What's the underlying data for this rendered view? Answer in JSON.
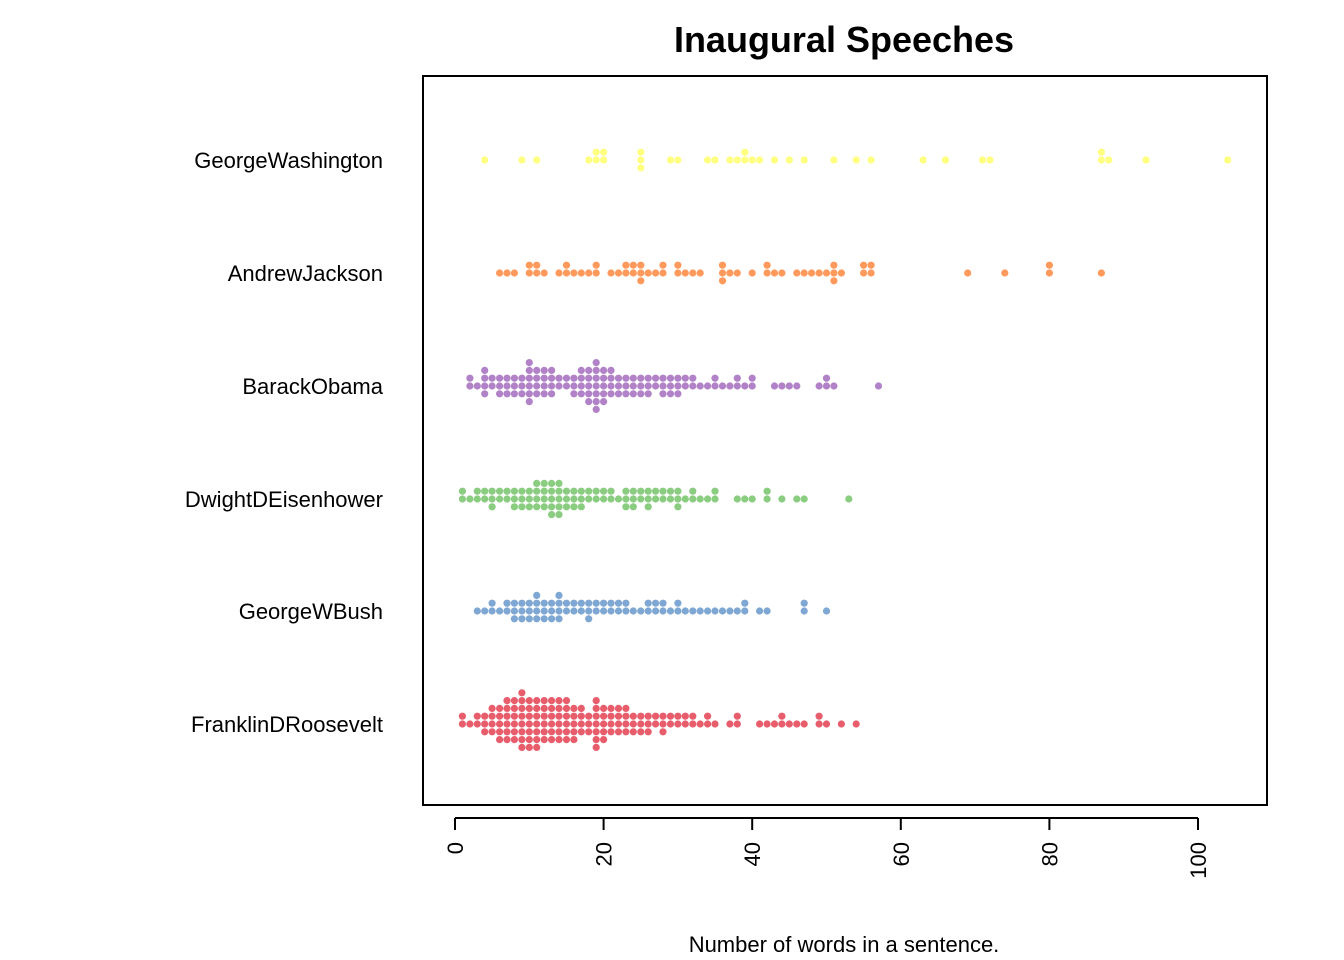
{
  "chart_data": {
    "type": "beeswarm",
    "title": "Inaugural Speeches",
    "xlabel": "Number of words in a sentence.",
    "ylabel": "",
    "xlim": [
      0,
      104
    ],
    "x_ticks": [
      0,
      20,
      40,
      60,
      80,
      100
    ],
    "x_tick_labels": [
      "0",
      "20",
      "40",
      "60",
      "80",
      "100"
    ],
    "x_tick_label_orientation": "vertical",
    "grid": false,
    "legend": "none",
    "series": [
      {
        "name": "GeorgeWashington",
        "color": "#FFFF80",
        "values": [
          4,
          9,
          11,
          18,
          19,
          19,
          20,
          20,
          25,
          25,
          25,
          29,
          30,
          34,
          35,
          37,
          38,
          39,
          39,
          40,
          41,
          43,
          45,
          47,
          51,
          54,
          56,
          63,
          66,
          71,
          72,
          87,
          87,
          88,
          93,
          104
        ]
      },
      {
        "name": "AndrewJackson",
        "color": "#FF9A5C",
        "values": [
          6,
          7,
          8,
          10,
          10,
          11,
          11,
          12,
          14,
          15,
          15,
          16,
          17,
          18,
          19,
          19,
          21,
          22,
          23,
          23,
          24,
          24,
          25,
          25,
          25,
          26,
          27,
          28,
          28,
          30,
          30,
          31,
          32,
          33,
          36,
          36,
          36,
          37,
          38,
          40,
          42,
          42,
          43,
          44,
          46,
          47,
          48,
          49,
          50,
          51,
          51,
          51,
          52,
          55,
          55,
          56,
          56,
          69,
          74,
          80,
          80,
          87
        ]
      },
      {
        "name": "BarackObama",
        "color": "#B182C7",
        "values": [
          2,
          2,
          3,
          4,
          4,
          4,
          4,
          5,
          5,
          6,
          6,
          6,
          7,
          7,
          7,
          8,
          8,
          8,
          9,
          9,
          9,
          10,
          10,
          10,
          10,
          10,
          10,
          11,
          11,
          11,
          11,
          12,
          12,
          12,
          12,
          13,
          13,
          13,
          13,
          14,
          14,
          15,
          15,
          16,
          16,
          16,
          17,
          17,
          17,
          17,
          18,
          18,
          18,
          18,
          18,
          19,
          19,
          19,
          19,
          19,
          19,
          19,
          20,
          20,
          20,
          20,
          20,
          21,
          21,
          21,
          21,
          22,
          22,
          22,
          23,
          23,
          23,
          24,
          24,
          24,
          25,
          25,
          25,
          26,
          26,
          26,
          27,
          27,
          28,
          28,
          28,
          29,
          29,
          29,
          30,
          30,
          30,
          31,
          31,
          32,
          32,
          33,
          34,
          35,
          35,
          36,
          37,
          38,
          38,
          39,
          40,
          40,
          43,
          44,
          45,
          46,
          49,
          50,
          50,
          51,
          57
        ]
      },
      {
        "name": "DwightDEisenhower",
        "color": "#8ACC80",
        "values": [
          1,
          1,
          2,
          3,
          3,
          4,
          4,
          5,
          5,
          5,
          6,
          6,
          7,
          7,
          8,
          8,
          8,
          9,
          9,
          9,
          10,
          10,
          10,
          11,
          11,
          11,
          11,
          12,
          12,
          12,
          12,
          13,
          13,
          13,
          13,
          13,
          14,
          14,
          14,
          14,
          14,
          15,
          15,
          15,
          16,
          16,
          16,
          17,
          17,
          17,
          18,
          18,
          19,
          19,
          20,
          20,
          21,
          21,
          22,
          23,
          23,
          23,
          24,
          24,
          24,
          25,
          25,
          26,
          26,
          26,
          27,
          27,
          28,
          28,
          29,
          29,
          30,
          30,
          30,
          31,
          32,
          32,
          33,
          34,
          35,
          35,
          38,
          39,
          40,
          42,
          42,
          44,
          46,
          47,
          53
        ]
      },
      {
        "name": "GeorgeWBush",
        "color": "#7FA7D3",
        "values": [
          3,
          4,
          5,
          5,
          6,
          7,
          7,
          8,
          8,
          8,
          9,
          9,
          9,
          10,
          10,
          10,
          11,
          11,
          11,
          11,
          12,
          12,
          12,
          13,
          13,
          13,
          14,
          14,
          14,
          14,
          15,
          15,
          16,
          16,
          17,
          17,
          18,
          18,
          18,
          19,
          19,
          20,
          20,
          21,
          21,
          22,
          22,
          23,
          23,
          24,
          25,
          26,
          26,
          27,
          27,
          28,
          28,
          29,
          30,
          30,
          31,
          32,
          33,
          34,
          35,
          36,
          37,
          38,
          39,
          39,
          41,
          42,
          47,
          47,
          50
        ]
      },
      {
        "name": "FranklinDRoosevelt",
        "color": "#E85D6B",
        "values": [
          1,
          1,
          2,
          3,
          3,
          4,
          4,
          4,
          5,
          5,
          5,
          5,
          6,
          6,
          6,
          6,
          6,
          7,
          7,
          7,
          7,
          7,
          7,
          8,
          8,
          8,
          8,
          8,
          8,
          9,
          9,
          9,
          9,
          9,
          9,
          9,
          9,
          10,
          10,
          10,
          10,
          10,
          10,
          10,
          11,
          11,
          11,
          11,
          11,
          11,
          11,
          12,
          12,
          12,
          12,
          12,
          12,
          13,
          13,
          13,
          13,
          13,
          13,
          14,
          14,
          14,
          14,
          14,
          14,
          15,
          15,
          15,
          15,
          15,
          15,
          16,
          16,
          16,
          16,
          16,
          17,
          17,
          17,
          17,
          18,
          18,
          18,
          19,
          19,
          19,
          19,
          19,
          19,
          19,
          20,
          20,
          20,
          20,
          20,
          21,
          21,
          21,
          21,
          22,
          22,
          22,
          22,
          23,
          23,
          23,
          23,
          24,
          24,
          24,
          25,
          25,
          25,
          26,
          26,
          26,
          27,
          27,
          28,
          28,
          28,
          29,
          29,
          30,
          30,
          31,
          31,
          32,
          32,
          33,
          34,
          34,
          35,
          37,
          38,
          38,
          41,
          42,
          43,
          44,
          44,
          45,
          46,
          47,
          49,
          49,
          50,
          52,
          54
        ]
      }
    ]
  }
}
